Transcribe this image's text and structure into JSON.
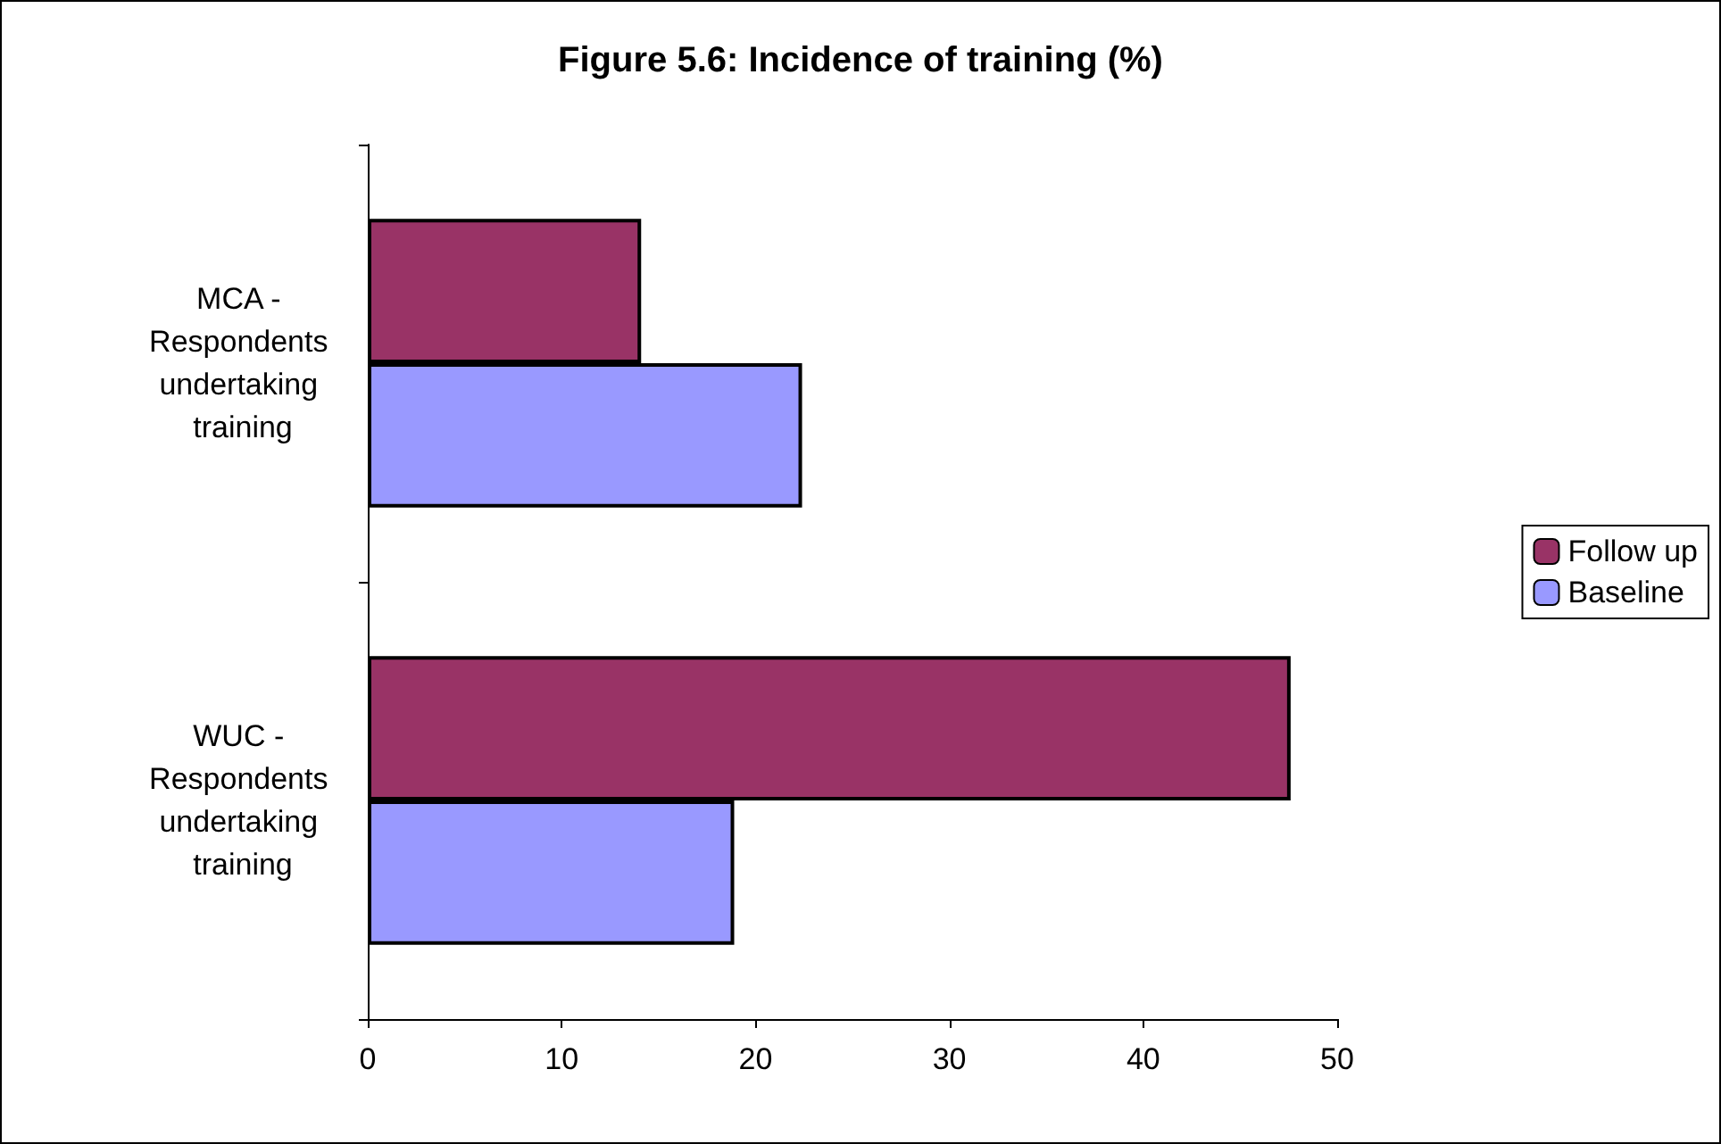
{
  "chart_data": {
    "type": "bar",
    "orientation": "horizontal",
    "title": "Figure 5.6: Incidence of training (%)",
    "categories": [
      "MCA - Respondents undertaking training",
      "WUC - Respondents undertaking training"
    ],
    "series": [
      {
        "name": "Follow up",
        "color": "#993366",
        "values": [
          14.1,
          47.6
        ]
      },
      {
        "name": "Baseline",
        "color": "#9999ff",
        "values": [
          22.4,
          18.9
        ]
      }
    ],
    "xlim": [
      0,
      50
    ],
    "xticks": [
      0,
      10,
      20,
      30,
      40,
      50
    ],
    "grid": false,
    "legend": "right"
  }
}
